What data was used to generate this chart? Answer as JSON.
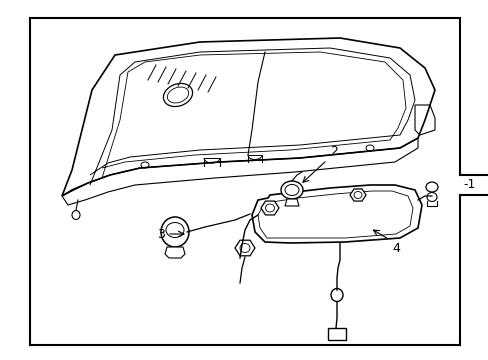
{
  "background_color": "#ffffff",
  "border_color": "#000000",
  "line_color": "#000000",
  "label_1": "-1",
  "label_2": "2",
  "label_3": "3",
  "label_4": "4",
  "label_fontsize": 9,
  "fig_width": 4.89,
  "fig_height": 3.6,
  "dpi": 100
}
